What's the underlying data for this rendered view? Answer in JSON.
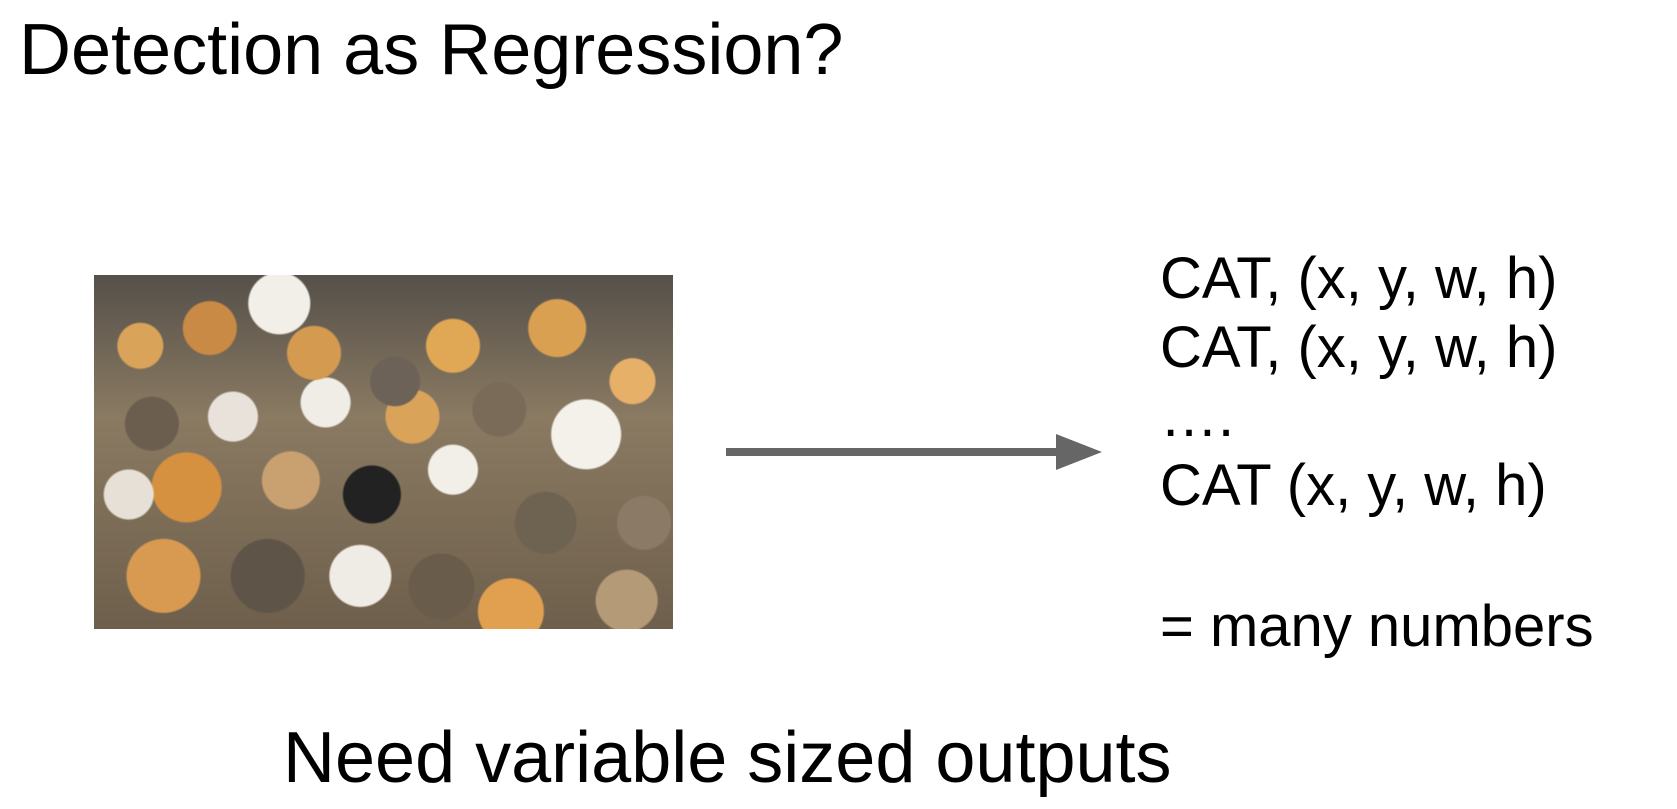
{
  "slide": {
    "title": "Detection as Regression?",
    "image_description_icon": "cats-photo",
    "arrow_icon": "right-arrow",
    "arrow_color": "#666666",
    "outputs": [
      "CAT, (x, y, w, h)",
      "CAT, (x, y, w, h)",
      "….",
      "CAT (x, y, w, h)"
    ],
    "summary": "= many numbers",
    "footer": "Need variable sized outputs"
  }
}
